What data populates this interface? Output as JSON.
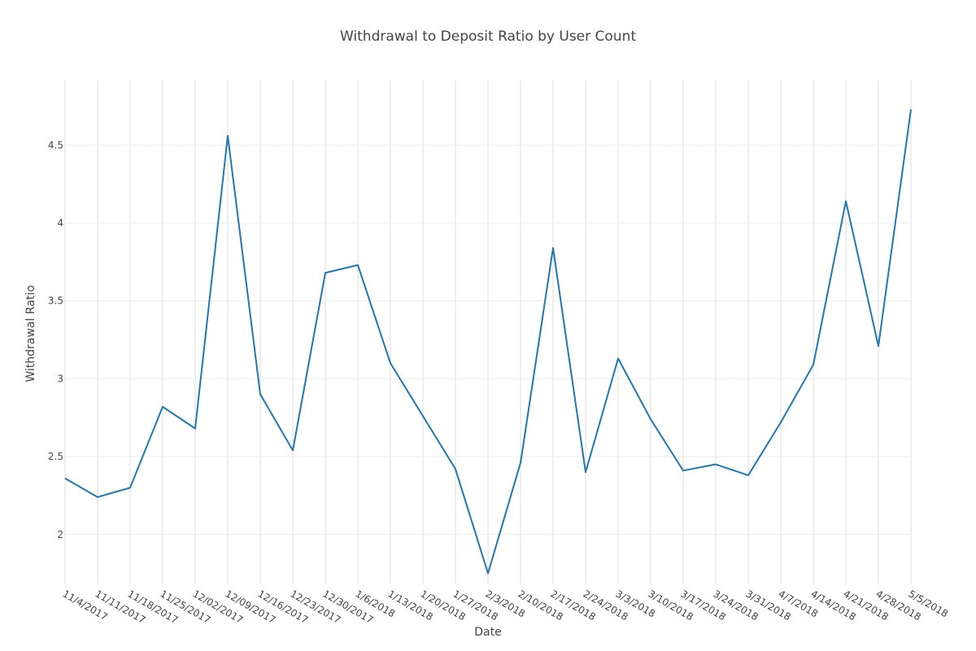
{
  "chart_data": {
    "type": "line",
    "title": "Withdrawal to Deposit Ratio by User Count",
    "xlabel": "Date",
    "ylabel": "Withdrawal Ratio",
    "categories": [
      "11/4/2017",
      "11/11/2017",
      "11/18/2017",
      "11/25/2017",
      "12/02/2017",
      "12/09/2017",
      "12/16/2017",
      "12/23/2017",
      "12/30/2017",
      "1/6/2018",
      "1/13/2018",
      "1/20/2018",
      "1/27/2018",
      "2/3/2018",
      "2/10/2018",
      "2/17/2018",
      "2/24/2018",
      "3/3/2018",
      "3/10/2018",
      "3/17/2018",
      "3/24/2018",
      "3/31/2018",
      "4/7/2018",
      "4/14/2018",
      "4/21/2018",
      "4/28/2018",
      "5/5/2018"
    ],
    "series": [
      {
        "values": [
          2.36,
          2.24,
          2.3,
          2.82,
          2.68,
          4.56,
          2.9,
          2.54,
          3.68,
          3.73,
          3.1,
          2.76,
          2.42,
          1.75,
          2.46,
          3.84,
          2.4,
          3.13,
          2.74,
          2.41,
          2.45,
          2.38,
          2.72,
          3.09,
          4.14,
          3.21,
          4.73
        ],
        "color": "#1f77b4"
      }
    ],
    "yticks": [
      2,
      2.5,
      3,
      3.5,
      4,
      4.5
    ],
    "ytick_labels": [
      "2",
      "2.5",
      "3",
      "3.5",
      "4",
      "4.5"
    ],
    "ylim": [
      1.68,
      4.92
    ],
    "grid": true,
    "legend": "none"
  }
}
